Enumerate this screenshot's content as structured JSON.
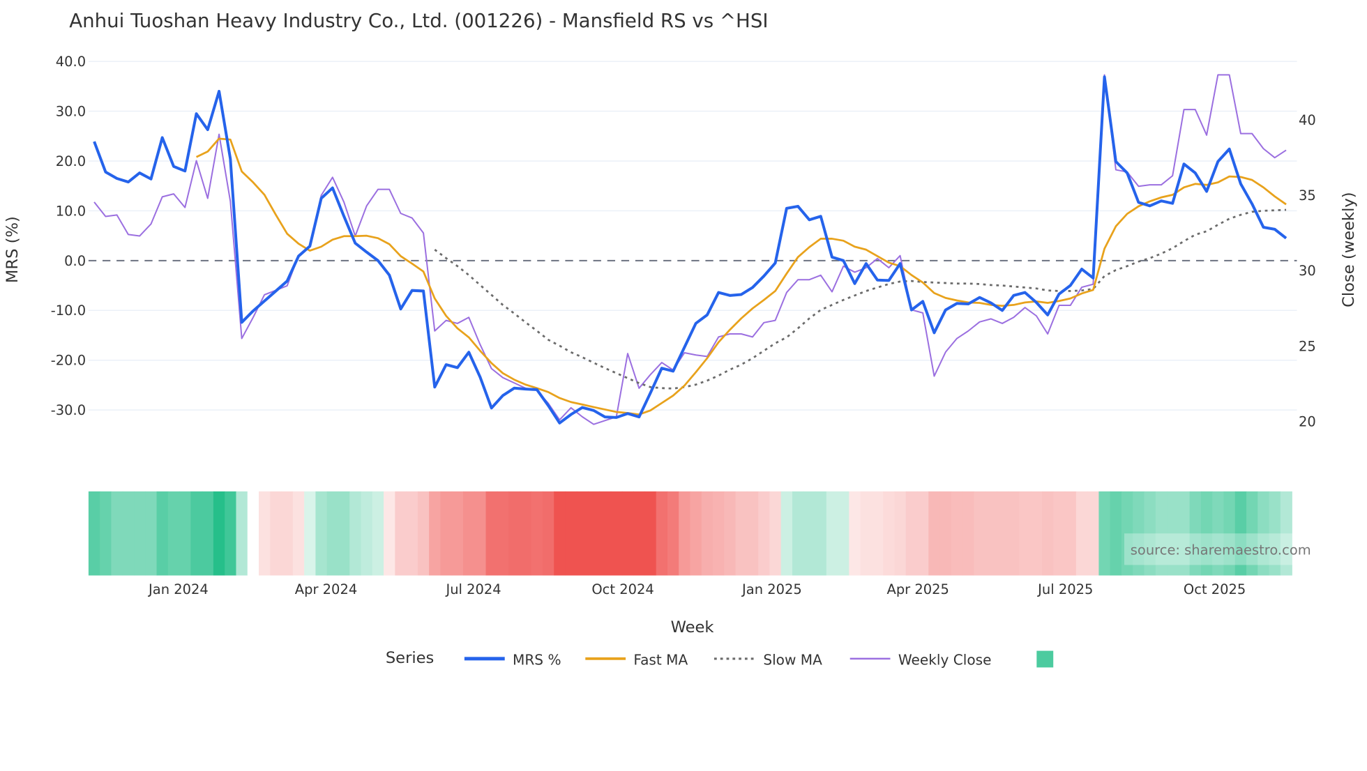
{
  "chart_data": {
    "type": "line",
    "title": "Anhui Tuoshan Heavy Industry Co., Ltd. (001226) - Mansfield RS vs ^HSI",
    "xlabel": "Week",
    "ylabel": "MRS (%)",
    "y2label": "Close (weekly)",
    "ylim": [
      -30,
      40
    ],
    "y2lim": [
      20,
      40
    ],
    "y_ticks": [
      "40.0",
      "30.0",
      "20.0",
      "10.0",
      "0.0",
      "-10.0",
      "-20.0",
      "-30.0"
    ],
    "y_tick_values": [
      40,
      30,
      20,
      10,
      0,
      -10,
      -20,
      -30
    ],
    "y2_ticks": [
      "40",
      "35",
      "30",
      "25",
      "20"
    ],
    "y2_tick_values": [
      40,
      35,
      30,
      25,
      20
    ],
    "x_start": "2023-11-10",
    "x_step_days": 7,
    "x_ticks": [
      {
        "label": "Jan 2024",
        "date": "2024-01-01"
      },
      {
        "label": "Apr 2024",
        "date": "2024-04-01"
      },
      {
        "label": "Jul 2024",
        "date": "2024-07-01"
      },
      {
        "label": "Oct 2024",
        "date": "2024-10-01"
      },
      {
        "label": "Jan 2025",
        "date": "2025-01-01"
      },
      {
        "label": "Apr 2025",
        "date": "2025-04-01"
      },
      {
        "label": "Jul 2025",
        "date": "2025-07-01"
      },
      {
        "label": "Oct 2025",
        "date": "2025-10-01"
      }
    ],
    "zero_line": 0,
    "legend_title": "Series",
    "legend_placement": "bottom-center",
    "series": [
      {
        "name": "MRS %",
        "color": "#2563eb",
        "axis": "left",
        "values": [
          23.9,
          17.8,
          16.5,
          15.8,
          17.6,
          16.4,
          24.7,
          18.9,
          18,
          29.5,
          26.3,
          34,
          20.4,
          -12.4,
          -10.1,
          -8.1,
          -6.1,
          -4.1,
          0.9,
          2.9,
          12.5,
          14.6,
          8.9,
          3.5,
          1.7,
          0,
          -2.9,
          -9.7,
          -6,
          -6.1,
          -25.4,
          -20.9,
          -21.5,
          -18.4,
          -23.4,
          -29.6,
          -27.1,
          -25.6,
          -25.8,
          -25.9,
          -29.1,
          -32.6,
          -30.9,
          -29.5,
          -30.1,
          -31.4,
          -31.5,
          -30.7,
          -31.4,
          -26.6,
          -21.6,
          -22.2,
          -17.4,
          -12.6,
          -10.9,
          -6.4,
          -7,
          -6.8,
          -5.4,
          -3.1,
          -0.5,
          10.5,
          10.9,
          8.2,
          8.9,
          0.7,
          0,
          -4.6,
          -0.6,
          -3.9,
          -4,
          -0.6,
          -9.9,
          -8.2,
          -14.5,
          -9.9,
          -8.6,
          -8.7,
          -7.4,
          -8.5,
          -10,
          -7,
          -6.4,
          -8.4,
          -10.9,
          -6.7,
          -5,
          -1.7,
          -3.5,
          36.9,
          19.9,
          17.6,
          11.7,
          11,
          12,
          11.5,
          19.4,
          17.6,
          13.9,
          19.9,
          22.4,
          15.4,
          11.4,
          6.7,
          6.3,
          4.5
        ]
      },
      {
        "name": "Fast MA",
        "color": "#e8a21c",
        "axis": "left",
        "values": [
          null,
          null,
          null,
          null,
          null,
          null,
          null,
          null,
          null,
          20.8,
          21.9,
          24.5,
          24.3,
          17.9,
          15.7,
          13.2,
          9.2,
          5.4,
          3.4,
          2,
          2.8,
          4.2,
          4.9,
          4.9,
          5,
          4.5,
          3.3,
          0.9,
          -0.6,
          -2.2,
          -7.6,
          -11.1,
          -13.6,
          -15.4,
          -18.1,
          -20.6,
          -22.6,
          -23.9,
          -24.9,
          -25.6,
          -26.4,
          -27.6,
          -28.4,
          -28.9,
          -29.4,
          -29.9,
          -30.4,
          -30.6,
          -30.9,
          -30.1,
          -28.6,
          -27.1,
          -25.1,
          -22.4,
          -19.6,
          -16.4,
          -13.9,
          -11.6,
          -9.6,
          -7.9,
          -6.1,
          -2.6,
          0.7,
          2.7,
          4.4,
          4.4,
          4,
          2.8,
          2.2,
          0.9,
          -0.4,
          -1.1,
          -2.9,
          -4.4,
          -6.5,
          -7.5,
          -8,
          -8.4,
          -8.5,
          -8.9,
          -9.1,
          -8.9,
          -8.4,
          -8.2,
          -8.5,
          -8.1,
          -7.6,
          -6.6,
          -5.9,
          2.4,
          6.9,
          9.4,
          10.9,
          11.9,
          12.7,
          13.2,
          14.7,
          15.4,
          15.2,
          15.7,
          16.9,
          16.8,
          16.2,
          14.7,
          12.9,
          11.3
        ]
      },
      {
        "name": "Slow MA",
        "color": "#6b6b6b",
        "axis": "left",
        "dash": "dot",
        "values": [
          null,
          null,
          null,
          null,
          null,
          null,
          null,
          null,
          null,
          null,
          null,
          null,
          null,
          null,
          null,
          null,
          null,
          null,
          null,
          null,
          null,
          null,
          null,
          null,
          null,
          null,
          null,
          null,
          null,
          null,
          2.2,
          0.5,
          -1.1,
          -2.9,
          -4.9,
          -6.9,
          -8.9,
          -10.6,
          -12.4,
          -14.1,
          -15.9,
          -17.1,
          -18.4,
          -19.4,
          -20.5,
          -21.6,
          -22.6,
          -23.6,
          -24.6,
          -25.4,
          -25.6,
          -25.7,
          -25.4,
          -24.9,
          -24.1,
          -23.1,
          -21.9,
          -20.9,
          -19.6,
          -18.1,
          -16.6,
          -15.4,
          -13.6,
          -11.6,
          -9.9,
          -8.9,
          -7.9,
          -7,
          -6.1,
          -5.4,
          -4.7,
          -4.2,
          -4.1,
          -4.3,
          -4.4,
          -4.5,
          -4.6,
          -4.6,
          -4.7,
          -4.9,
          -5,
          -5.2,
          -5.4,
          -5.6,
          -6,
          -6.1,
          -6.1,
          -6,
          -5.7,
          -3.1,
          -1.9,
          -1.1,
          -0.2,
          0.5,
          1.4,
          2.5,
          3.9,
          5.2,
          5.9,
          7.2,
          8.4,
          9.2,
          9.8,
          10,
          10.1,
          10.2
        ]
      },
      {
        "name": "Weekly Close",
        "color": "#9b6fe0",
        "axis": "right",
        "values": [
          34.55,
          33.6,
          33.7,
          32.4,
          32.3,
          33.1,
          34.9,
          35.1,
          34.2,
          37.3,
          34.8,
          39.05,
          34.6,
          25.5,
          26.9,
          28.4,
          28.7,
          29,
          31,
          31.6,
          35,
          36.2,
          34.55,
          32.3,
          34.3,
          35.4,
          35.4,
          33.8,
          33.5,
          32.5,
          26,
          26.7,
          26.5,
          26.9,
          25.1,
          23.5,
          22.9,
          22.55,
          22.2,
          22.05,
          21.2,
          20.1,
          20.9,
          20.3,
          19.8,
          20.05,
          20.3,
          24.5,
          22.2,
          23.1,
          23.9,
          23.4,
          24.55,
          24.4,
          24.3,
          25.6,
          25.8,
          25.8,
          25.6,
          26.55,
          26.7,
          28.55,
          29.4,
          29.4,
          29.7,
          28.6,
          30.3,
          29.9,
          30.2,
          30.8,
          30.2,
          31,
          27.4,
          27.2,
          23,
          24.6,
          25.5,
          26,
          26.6,
          26.8,
          26.5,
          26.9,
          27.55,
          27,
          25.8,
          27.7,
          27.7,
          28.9,
          29.1,
          43,
          36.7,
          36.55,
          35.6,
          35.7,
          35.7,
          36.3,
          40.7,
          40.7,
          39,
          43,
          43,
          39.1,
          39.1,
          38.1,
          37.5,
          38
        ]
      }
    ],
    "heatmap": {
      "legend_color": "#4ccb9f",
      "positive_color": "#26bf8a",
      "negative_color": "#ef5350",
      "values": [
        0.65,
        0.6,
        0.5,
        0.5,
        0.5,
        0.5,
        0.65,
        0.6,
        0.6,
        0.7,
        0.7,
        0.85,
        0.75,
        0.3,
        0,
        -0.15,
        -0.2,
        -0.2,
        -0.15,
        0.15,
        0.35,
        0.4,
        0.4,
        0.3,
        0.25,
        0.2,
        -0.12,
        -0.25,
        -0.25,
        -0.3,
        -0.45,
        -0.5,
        -0.5,
        -0.55,
        -0.55,
        -0.7,
        -0.7,
        -0.72,
        -0.72,
        -0.7,
        -0.72,
        -0.85,
        -0.85,
        -0.85,
        -0.85,
        -0.85,
        -0.85,
        -0.85,
        -0.85,
        -0.85,
        -0.7,
        -0.65,
        -0.5,
        -0.45,
        -0.4,
        -0.38,
        -0.35,
        -0.3,
        -0.3,
        -0.25,
        -0.2,
        0.2,
        0.3,
        0.3,
        0.3,
        0.2,
        0.2,
        -0.12,
        -0.15,
        -0.15,
        -0.18,
        -0.2,
        -0.25,
        -0.25,
        -0.35,
        -0.35,
        -0.33,
        -0.33,
        -0.3,
        -0.3,
        -0.3,
        -0.3,
        -0.28,
        -0.28,
        -0.3,
        -0.28,
        -0.28,
        -0.2,
        -0.2,
        0.55,
        0.6,
        0.55,
        0.5,
        0.45,
        0.4,
        0.4,
        0.4,
        0.5,
        0.55,
        0.5,
        0.55,
        0.65,
        0.55,
        0.45,
        0.4,
        0.3
      ]
    },
    "watermark": "source: sharemaestro.com"
  }
}
